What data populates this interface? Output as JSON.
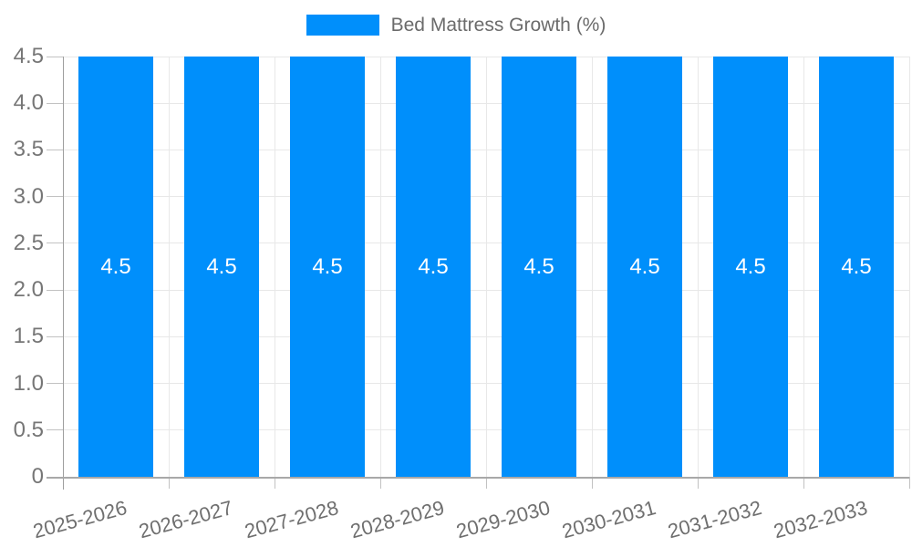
{
  "chart_data": {
    "type": "bar",
    "title": "",
    "legend_position": "top",
    "categories": [
      "2025-2026",
      "2026-2027",
      "2027-2028",
      "2028-2029",
      "2029-2030",
      "2030-2031",
      "2031-2032",
      "2032-2033"
    ],
    "series": [
      {
        "name": "Bed Mattress Growth (%)",
        "values": [
          4.5,
          4.5,
          4.5,
          4.5,
          4.5,
          4.5,
          4.5,
          4.5
        ]
      }
    ],
    "data_labels": [
      "4.5",
      "4.5",
      "4.5",
      "4.5",
      "4.5",
      "4.5",
      "4.5",
      "4.5"
    ],
    "y_axis": {
      "min": 0,
      "max": 4.5,
      "tick_labels": [
        "4.5",
        "4.0",
        "3.5",
        "3.0",
        "2.5",
        "2.0",
        "1.5",
        "1.0",
        "0.5",
        "0"
      ]
    },
    "grid": true,
    "colors": {
      "bar": "#008ffb",
      "grid_line": "#e8e8e8",
      "y_axis_line": "#9e9e9e",
      "x_axis_line": "#a8a8a8",
      "tick_mark": "#c2c2c2",
      "axis_label": "#767676",
      "data_label": "#ffffff",
      "legend_text": "#6b6b6b"
    }
  }
}
